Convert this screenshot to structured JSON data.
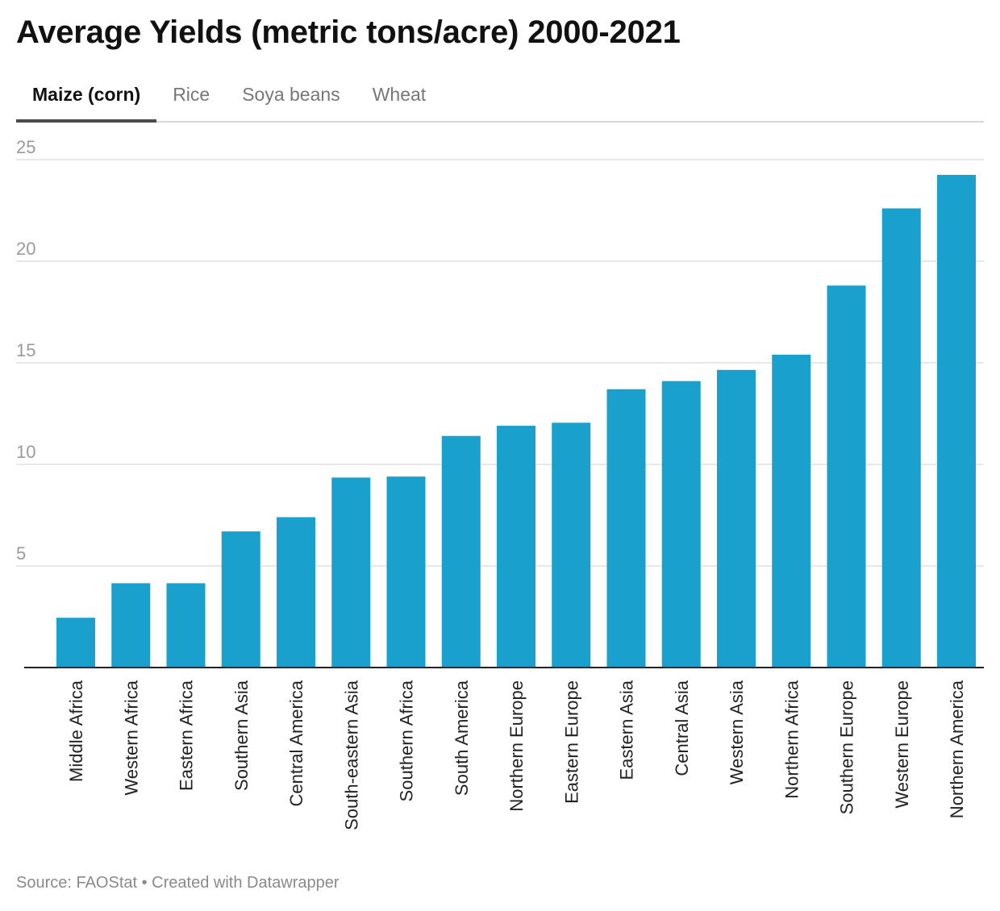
{
  "title": "Average Yields (metric tons/acre) 2000-2021",
  "tabs": [
    "Maize (corn)",
    "Rice",
    "Soya beans",
    "Wheat"
  ],
  "active_tab": 0,
  "footer": "Source: FAOStat • Created with Datawrapper",
  "colors": {
    "bar": "#1aa0cc",
    "grid": "#e0e0e0",
    "tick_text": "#9a9a9a",
    "axis": "#222222"
  },
  "chart_data": {
    "type": "bar",
    "categories": [
      "Middle Africa",
      "Western Africa",
      "Eastern Africa",
      "Southern Asia",
      "Central America",
      "South-eastern Asia",
      "Southern Africa",
      "South America",
      "Northern Europe",
      "Eastern Europe",
      "Eastern Asia",
      "Central Asia",
      "Western Asia",
      "Northern Africa",
      "Southern Europe",
      "Western Europe",
      "Northern America"
    ],
    "values": [
      2.45,
      4.15,
      4.15,
      6.7,
      7.4,
      9.35,
      9.4,
      11.4,
      11.9,
      12.05,
      13.7,
      14.1,
      14.65,
      15.4,
      18.8,
      22.6,
      24.25
    ],
    "yticks": [
      5,
      10,
      15,
      20,
      25
    ],
    "ylim": [
      0,
      25
    ],
    "xlabel": "",
    "ylabel": "",
    "grid": true
  }
}
